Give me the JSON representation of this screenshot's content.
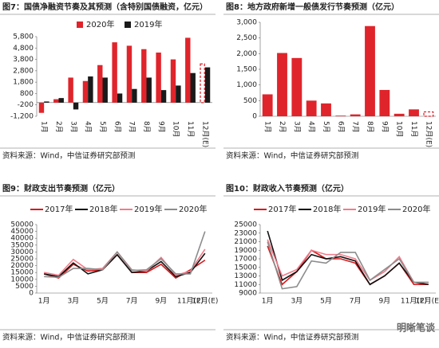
{
  "chart_data": [
    {
      "type": "bar",
      "title": "图7：国债净融资节奏及其预测（含特别国债融资，亿元）",
      "source": "资料来源：Wind，中信证券研究部预测",
      "categories": [
        "1月",
        "2月",
        "3月",
        "4月",
        "5月",
        "6月",
        "7月",
        "8月",
        "9月",
        "10月",
        "11月",
        "12月(E)"
      ],
      "series": [
        {
          "name": "2020年",
          "color": "#e0242b",
          "values": [
            -900,
            300,
            2200,
            1900,
            3300,
            5300,
            5000,
            4700,
            4400,
            3800,
            5700,
            3400
          ]
        },
        {
          "name": "2019年",
          "color": "#1a1a1a",
          "values": [
            100,
            400,
            -600,
            2300,
            2200,
            800,
            1200,
            2200,
            1100,
            1500,
            2600,
            3100
          ]
        }
      ],
      "outline_last": true,
      "ylim": [
        -1200,
        5800
      ],
      "yticks": [
        {
          "value": -1200,
          "label": "-1,200"
        },
        -200,
        800,
        {
          "value": 1800,
          "label": "1,800"
        },
        {
          "value": 2800,
          "label": "2,800"
        },
        {
          "value": 3800,
          "label": "3,800"
        },
        {
          "value": 4800,
          "label": "4,800"
        },
        {
          "value": 5800,
          "label": "5,800"
        }
      ]
    },
    {
      "type": "bar",
      "title": "图8：地方政府新增一般债发行节奏预测（亿元）",
      "source": "资料来源：Wind，中信证券研究部预测",
      "categories": [
        "1月",
        "2月",
        "3月",
        "4月",
        "5月",
        "6月",
        "7月",
        "8月",
        "9月",
        "10月",
        "11月",
        "12月(E)"
      ],
      "values": [
        700,
        2020,
        1860,
        500,
        410,
        20,
        60,
        2880,
        840,
        80,
        220,
        140
      ],
      "color": "#e0242b",
      "outline_last": true,
      "ylim": [
        0,
        3000
      ],
      "yticks": [
        0,
        500,
        {
          "value": 1000,
          "label": "1,000"
        },
        {
          "value": 1500,
          "label": "1,500"
        },
        {
          "value": 2000,
          "label": "2,000"
        },
        {
          "value": 2500,
          "label": "2,500"
        },
        {
          "value": 3000,
          "label": "3,000"
        }
      ]
    },
    {
      "type": "line",
      "title": "图9：财政支出节奏预测（亿元）",
      "source": "资料来源：Wind，中信证券研究部预测",
      "categories": [
        "1月",
        null,
        "3月",
        null,
        "5月",
        null,
        "7月",
        null,
        "9月",
        null,
        "11月(E)",
        "12月(E)"
      ],
      "series": [
        {
          "name": "2017年",
          "color": "#d7191c",
          "values": [
            14000,
            11000,
            21000,
            16000,
            17000,
            28000,
            15000,
            15000,
            21000,
            11000,
            17000,
            24000
          ]
        },
        {
          "name": "2018年",
          "color": "#111111",
          "values": [
            14000,
            12000,
            22000,
            14000,
            17000,
            28000,
            15000,
            16000,
            23000,
            12000,
            15000,
            29000
          ]
        },
        {
          "name": "2019年",
          "color": "#f07c8a",
          "values": [
            15000,
            13000,
            24500,
            17000,
            18000,
            30000,
            17000,
            16000,
            26000,
            13000,
            16000,
            32000
          ]
        },
        {
          "name": "2020年",
          "color": "#8c8c8c",
          "values": [
            12000,
            11500,
            18000,
            18000,
            17000,
            30000,
            16500,
            17000,
            25000,
            14000,
            14000,
            45000
          ]
        }
      ],
      "ylim": [
        0,
        50000
      ],
      "yticks": [
        0,
        5000,
        10000,
        15000,
        20000,
        25000,
        30000,
        35000,
        40000,
        45000,
        50000
      ]
    },
    {
      "type": "line",
      "title": "图10：财政收入节奏预测（亿元）",
      "source": "资料来源：Wind，中信证券研究部预测",
      "categories": [
        "1月",
        null,
        "3月",
        null,
        "5月",
        null,
        "7月",
        null,
        "9月",
        null,
        "11月(E)",
        "12月(E)"
      ],
      "series": [
        {
          "name": "2017年",
          "color": "#d7191c",
          "values": [
            20000,
            11000,
            14000,
            19000,
            17000,
            17000,
            16000,
            11000,
            13000,
            16000,
            11000,
            11000
          ]
        },
        {
          "name": "2018年",
          "color": "#111111",
          "values": [
            23500,
            12000,
            14000,
            18000,
            17000,
            17500,
            16500,
            11000,
            13000,
            16000,
            11500,
            11000
          ]
        },
        {
          "name": "2019年",
          "color": "#f07c8a",
          "values": [
            21500,
            13000,
            14500,
            19000,
            18000,
            18000,
            17000,
            12000,
            14000,
            17500,
            11500,
            11500
          ]
        },
        {
          "name": "2020年",
          "color": "#8c8c8c",
          "values": [
            21000,
            10000,
            10500,
            16500,
            16000,
            18500,
            18500,
            12000,
            14500,
            17000,
            11500,
            11500
          ]
        }
      ],
      "ylim": [
        9000,
        25000
      ],
      "yticks": [
        9000,
        11000,
        13000,
        15000,
        17000,
        19000,
        21000,
        23000,
        25000
      ]
    }
  ],
  "watermark": "明晰笔谈"
}
